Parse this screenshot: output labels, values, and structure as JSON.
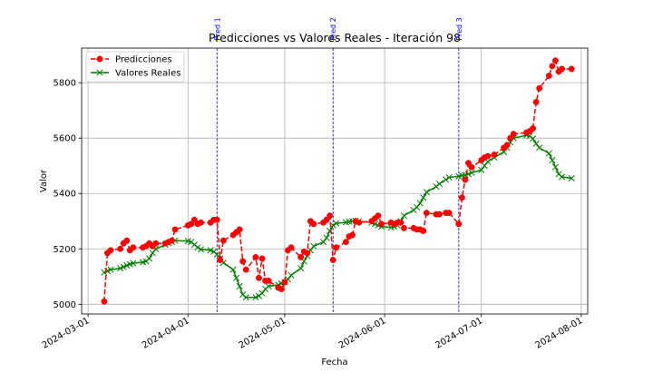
{
  "chart_data": {
    "type": "line",
    "title": "Predicciones vs Valores Reales - Iteración 98",
    "xlabel": "Fecha",
    "ylabel": "Valor",
    "x_type": "date",
    "xlim": [
      "2024-02-28",
      "2024-08-03"
    ],
    "ylim": [
      4965,
      5925
    ],
    "x_ticks": [
      "2024-03-01",
      "2024-04-01",
      "2024-05-01",
      "2024-06-01",
      "2024-07-01",
      "2024-08-01"
    ],
    "y_ticks": [
      5000,
      5200,
      5400,
      5600,
      5800
    ],
    "grid": true,
    "legend_position": "top-left",
    "vlines": [
      {
        "label": "Pred 1",
        "x": "2024-04-10",
        "color": "#0000ff"
      },
      {
        "label": "Pred 2",
        "x": "2024-05-16",
        "color": "#0000ff"
      },
      {
        "label": "Pred 3",
        "x": "2024-06-24",
        "color": "#0000ff"
      }
    ],
    "series": [
      {
        "name": "Predicciones",
        "color": "#ff0000",
        "marker": "circle",
        "line_style": "dashed",
        "points": [
          [
            "2024-03-06",
            5010
          ],
          [
            "2024-03-07",
            5185
          ],
          [
            "2024-03-08",
            5195
          ],
          [
            "2024-03-11",
            5200
          ],
          [
            "2024-03-12",
            5220
          ],
          [
            "2024-03-13",
            5230
          ],
          [
            "2024-03-14",
            5195
          ],
          [
            "2024-03-15",
            5205
          ],
          [
            "2024-03-18",
            5205
          ],
          [
            "2024-03-19",
            5210
          ],
          [
            "2024-03-20",
            5220
          ],
          [
            "2024-03-21",
            5210
          ],
          [
            "2024-03-22",
            5220
          ],
          [
            "2024-03-25",
            5220
          ],
          [
            "2024-03-26",
            5225
          ],
          [
            "2024-03-27",
            5230
          ],
          [
            "2024-03-28",
            5270
          ],
          [
            "2024-04-01",
            5285
          ],
          [
            "2024-04-02",
            5290
          ],
          [
            "2024-04-03",
            5305
          ],
          [
            "2024-04-04",
            5290
          ],
          [
            "2024-04-05",
            5295
          ],
          [
            "2024-04-08",
            5295
          ],
          [
            "2024-04-09",
            5305
          ],
          [
            "2024-04-10",
            5305
          ],
          [
            "2024-04-11",
            5160
          ],
          [
            "2024-04-12",
            5230
          ],
          [
            "2024-04-15",
            5250
          ],
          [
            "2024-04-16",
            5260
          ],
          [
            "2024-04-17",
            5270
          ],
          [
            "2024-04-18",
            5155
          ],
          [
            "2024-04-19",
            5125
          ],
          [
            "2024-04-22",
            5170
          ],
          [
            "2024-04-23",
            5095
          ],
          [
            "2024-04-24",
            5165
          ],
          [
            "2024-04-25",
            5085
          ],
          [
            "2024-04-26",
            5085
          ],
          [
            "2024-04-29",
            5060
          ],
          [
            "2024-04-30",
            5055
          ],
          [
            "2024-05-01",
            5080
          ],
          [
            "2024-05-02",
            5195
          ],
          [
            "2024-05-03",
            5205
          ],
          [
            "2024-05-06",
            5170
          ],
          [
            "2024-05-07",
            5190
          ],
          [
            "2024-05-08",
            5185
          ],
          [
            "2024-05-09",
            5300
          ],
          [
            "2024-05-10",
            5290
          ],
          [
            "2024-05-13",
            5295
          ],
          [
            "2024-05-14",
            5305
          ],
          [
            "2024-05-15",
            5320
          ],
          [
            "2024-05-16",
            5160
          ],
          [
            "2024-05-17",
            5205
          ],
          [
            "2024-05-20",
            5225
          ],
          [
            "2024-05-21",
            5245
          ],
          [
            "2024-05-22",
            5250
          ],
          [
            "2024-05-23",
            5300
          ],
          [
            "2024-05-24",
            5295
          ],
          [
            "2024-05-28",
            5300
          ],
          [
            "2024-05-29",
            5310
          ],
          [
            "2024-05-30",
            5320
          ],
          [
            "2024-05-31",
            5290
          ],
          [
            "2024-06-03",
            5295
          ],
          [
            "2024-06-04",
            5290
          ],
          [
            "2024-06-05",
            5295
          ],
          [
            "2024-06-06",
            5295
          ],
          [
            "2024-06-07",
            5275
          ],
          [
            "2024-06-10",
            5275
          ],
          [
            "2024-06-11",
            5270
          ],
          [
            "2024-06-12",
            5270
          ],
          [
            "2024-06-13",
            5265
          ],
          [
            "2024-06-14",
            5330
          ],
          [
            "2024-06-17",
            5325
          ],
          [
            "2024-06-18",
            5325
          ],
          [
            "2024-06-20",
            5330
          ],
          [
            "2024-06-21",
            5330
          ],
          [
            "2024-06-24",
            5290
          ],
          [
            "2024-06-25",
            5385
          ],
          [
            "2024-06-26",
            5450
          ],
          [
            "2024-06-27",
            5510
          ],
          [
            "2024-06-28",
            5495
          ],
          [
            "2024-07-01",
            5520
          ],
          [
            "2024-07-02",
            5530
          ],
          [
            "2024-07-03",
            5535
          ],
          [
            "2024-07-05",
            5540
          ],
          [
            "2024-07-08",
            5565
          ],
          [
            "2024-07-09",
            5575
          ],
          [
            "2024-07-10",
            5600
          ],
          [
            "2024-07-11",
            5615
          ],
          [
            "2024-07-15",
            5620
          ],
          [
            "2024-07-16",
            5625
          ],
          [
            "2024-07-17",
            5635
          ],
          [
            "2024-07-18",
            5730
          ],
          [
            "2024-07-19",
            5780
          ],
          [
            "2024-07-22",
            5825
          ],
          [
            "2024-07-23",
            5860
          ],
          [
            "2024-07-24",
            5880
          ],
          [
            "2024-07-25",
            5840
          ],
          [
            "2024-07-26",
            5850
          ],
          [
            "2024-07-29",
            5850
          ]
        ]
      },
      {
        "name": "Valores Reales",
        "color": "#008000",
        "marker": "x",
        "line_style": "solid",
        "points": [
          [
            "2024-03-06",
            5115
          ],
          [
            "2024-03-07",
            5120
          ],
          [
            "2024-03-08",
            5125
          ],
          [
            "2024-03-11",
            5130
          ],
          [
            "2024-03-12",
            5135
          ],
          [
            "2024-03-13",
            5140
          ],
          [
            "2024-03-14",
            5145
          ],
          [
            "2024-03-15",
            5148
          ],
          [
            "2024-03-18",
            5152
          ],
          [
            "2024-03-19",
            5155
          ],
          [
            "2024-03-20",
            5165
          ],
          [
            "2024-03-21",
            5185
          ],
          [
            "2024-03-22",
            5200
          ],
          [
            "2024-03-25",
            5215
          ],
          [
            "2024-03-26",
            5220
          ],
          [
            "2024-03-27",
            5225
          ],
          [
            "2024-03-28",
            5230
          ],
          [
            "2024-04-01",
            5228
          ],
          [
            "2024-04-02",
            5225
          ],
          [
            "2024-04-03",
            5215
          ],
          [
            "2024-04-04",
            5205
          ],
          [
            "2024-04-05",
            5198
          ],
          [
            "2024-04-08",
            5195
          ],
          [
            "2024-04-09",
            5190
          ],
          [
            "2024-04-10",
            5180
          ],
          [
            "2024-04-11",
            5165
          ],
          [
            "2024-04-12",
            5150
          ],
          [
            "2024-04-15",
            5125
          ],
          [
            "2024-04-16",
            5095
          ],
          [
            "2024-04-17",
            5065
          ],
          [
            "2024-04-18",
            5035
          ],
          [
            "2024-04-19",
            5025
          ],
          [
            "2024-04-22",
            5025
          ],
          [
            "2024-04-23",
            5030
          ],
          [
            "2024-04-24",
            5040
          ],
          [
            "2024-04-25",
            5055
          ],
          [
            "2024-04-26",
            5065
          ],
          [
            "2024-04-29",
            5070
          ],
          [
            "2024-04-30",
            5075
          ],
          [
            "2024-05-01",
            5080
          ],
          [
            "2024-05-02",
            5090
          ],
          [
            "2024-05-03",
            5105
          ],
          [
            "2024-05-06",
            5130
          ],
          [
            "2024-05-07",
            5155
          ],
          [
            "2024-05-08",
            5175
          ],
          [
            "2024-05-09",
            5195
          ],
          [
            "2024-05-10",
            5210
          ],
          [
            "2024-05-13",
            5225
          ],
          [
            "2024-05-14",
            5240
          ],
          [
            "2024-05-15",
            5265
          ],
          [
            "2024-05-16",
            5285
          ],
          [
            "2024-05-17",
            5292
          ],
          [
            "2024-05-20",
            5296
          ],
          [
            "2024-05-21",
            5298
          ],
          [
            "2024-05-22",
            5300
          ],
          [
            "2024-05-23",
            5302
          ],
          [
            "2024-05-24",
            5300
          ],
          [
            "2024-05-28",
            5295
          ],
          [
            "2024-05-29",
            5290
          ],
          [
            "2024-05-30",
            5285
          ],
          [
            "2024-05-31",
            5280
          ],
          [
            "2024-06-03",
            5278
          ],
          [
            "2024-06-04",
            5280
          ],
          [
            "2024-06-05",
            5285
          ],
          [
            "2024-06-06",
            5300
          ],
          [
            "2024-06-07",
            5320
          ],
          [
            "2024-06-10",
            5340
          ],
          [
            "2024-06-11",
            5350
          ],
          [
            "2024-06-12",
            5365
          ],
          [
            "2024-06-13",
            5385
          ],
          [
            "2024-06-14",
            5405
          ],
          [
            "2024-06-17",
            5425
          ],
          [
            "2024-06-18",
            5435
          ],
          [
            "2024-06-20",
            5450
          ],
          [
            "2024-06-21",
            5458
          ],
          [
            "2024-06-24",
            5462
          ],
          [
            "2024-06-25",
            5465
          ],
          [
            "2024-06-26",
            5467
          ],
          [
            "2024-06-27",
            5470
          ],
          [
            "2024-06-28",
            5475
          ],
          [
            "2024-07-01",
            5485
          ],
          [
            "2024-07-02",
            5500
          ],
          [
            "2024-07-03",
            5515
          ],
          [
            "2024-07-05",
            5530
          ],
          [
            "2024-07-08",
            5550
          ],
          [
            "2024-07-09",
            5565
          ],
          [
            "2024-07-10",
            5585
          ],
          [
            "2024-07-11",
            5600
          ],
          [
            "2024-07-15",
            5610
          ],
          [
            "2024-07-16",
            5608
          ],
          [
            "2024-07-17",
            5598
          ],
          [
            "2024-07-18",
            5580
          ],
          [
            "2024-07-19",
            5565
          ],
          [
            "2024-07-22",
            5545
          ],
          [
            "2024-07-23",
            5520
          ],
          [
            "2024-07-24",
            5495
          ],
          [
            "2024-07-25",
            5470
          ],
          [
            "2024-07-26",
            5460
          ],
          [
            "2024-07-29",
            5455
          ]
        ]
      }
    ]
  }
}
